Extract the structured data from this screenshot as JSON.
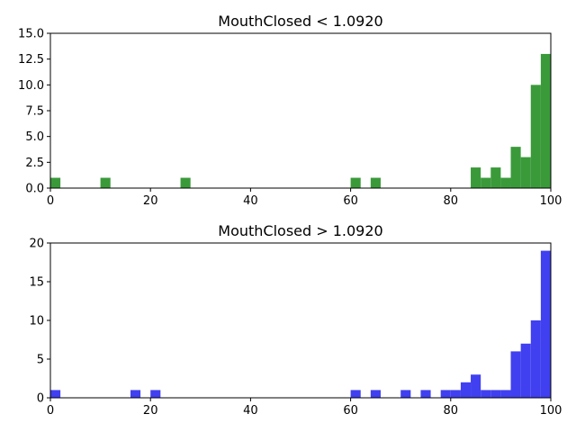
{
  "chart_data": [
    {
      "type": "bar",
      "title": "MouthClosed < 1.0920",
      "xlabel": "",
      "ylabel": "",
      "color": "#3a9a3a",
      "xlim": [
        0,
        100
      ],
      "ylim": [
        0,
        15
      ],
      "x_ticks": [
        0,
        20,
        40,
        60,
        80,
        100
      ],
      "y_ticks": [
        0.0,
        2.5,
        5.0,
        7.5,
        10.0,
        12.5,
        15.0
      ],
      "y_tick_labels": [
        "0.0",
        "2.5",
        "5.0",
        "7.5",
        "10.0",
        "12.5",
        "15.0"
      ],
      "bin_width": 2,
      "bins": [
        {
          "x": 0,
          "value": 1
        },
        {
          "x": 10,
          "value": 1
        },
        {
          "x": 26,
          "value": 1
        },
        {
          "x": 60,
          "value": 1
        },
        {
          "x": 64,
          "value": 1
        },
        {
          "x": 84,
          "value": 2
        },
        {
          "x": 86,
          "value": 1
        },
        {
          "x": 88,
          "value": 2
        },
        {
          "x": 90,
          "value": 1
        },
        {
          "x": 92,
          "value": 4
        },
        {
          "x": 94,
          "value": 3
        },
        {
          "x": 96,
          "value": 10
        },
        {
          "x": 98,
          "value": 13
        }
      ]
    },
    {
      "type": "bar",
      "title": "MouthClosed > 1.0920",
      "xlabel": "",
      "ylabel": "",
      "color": "#4040f0",
      "xlim": [
        0,
        100
      ],
      "ylim": [
        0,
        20
      ],
      "x_ticks": [
        0,
        20,
        40,
        60,
        80,
        100
      ],
      "y_ticks": [
        0,
        5,
        10,
        15,
        20
      ],
      "y_tick_labels": [
        "0",
        "5",
        "10",
        "15",
        "20"
      ],
      "bin_width": 2,
      "bins": [
        {
          "x": 0,
          "value": 1
        },
        {
          "x": 16,
          "value": 1
        },
        {
          "x": 20,
          "value": 1
        },
        {
          "x": 60,
          "value": 1
        },
        {
          "x": 64,
          "value": 1
        },
        {
          "x": 70,
          "value": 1
        },
        {
          "x": 74,
          "value": 1
        },
        {
          "x": 78,
          "value": 1
        },
        {
          "x": 80,
          "value": 1
        },
        {
          "x": 82,
          "value": 2
        },
        {
          "x": 84,
          "value": 3
        },
        {
          "x": 86,
          "value": 1
        },
        {
          "x": 88,
          "value": 1
        },
        {
          "x": 90,
          "value": 1
        },
        {
          "x": 92,
          "value": 6
        },
        {
          "x": 94,
          "value": 7
        },
        {
          "x": 96,
          "value": 10
        },
        {
          "x": 98,
          "value": 19
        }
      ]
    }
  ]
}
